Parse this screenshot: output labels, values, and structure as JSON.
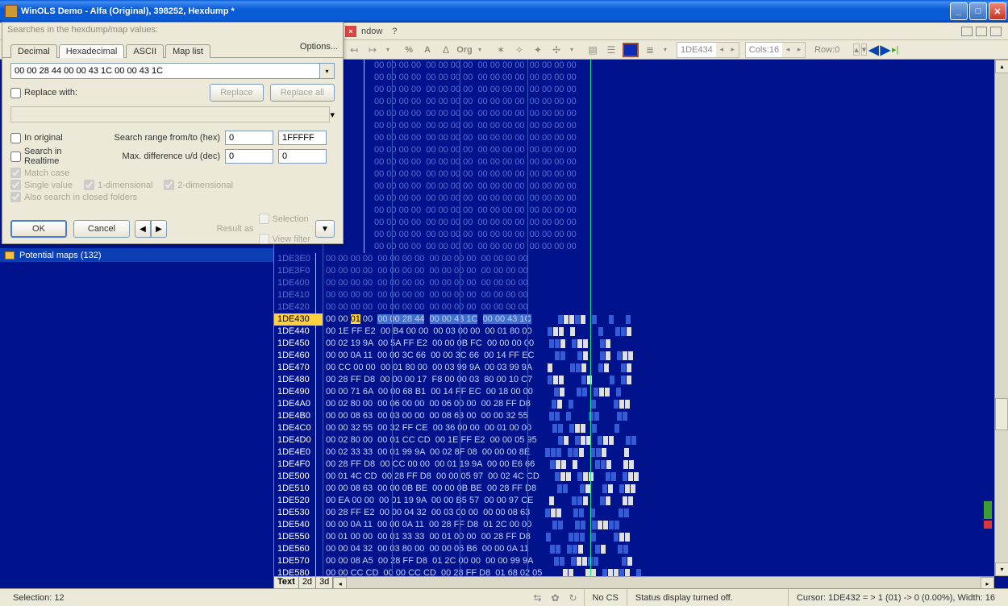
{
  "window": {
    "title": "WinOLS Demo - Alfa (Original), 398252, Hexdump *"
  },
  "menubar": {
    "item1": "ndow",
    "item2": "?"
  },
  "toolbar": {
    "addr": "1DE434",
    "cols": "Cols:16",
    "row": "Row:0"
  },
  "leftpanel": {
    "potential": "Potential maps (132)"
  },
  "statusbar": {
    "selection": "Selection: 12",
    "nocs": "No CS",
    "status_off": "Status display turned off.",
    "cursor": "Cursor: 1DE432 = > 1 (01) -> 0 (0.00%), Width: 16"
  },
  "search": {
    "header": "Searches in the hexdump/map values:",
    "tab_decimal": "Decimal",
    "tab_hex": "Hexadecimal",
    "tab_ascii": "ASCII",
    "tab_maplist": "Map list",
    "options": "Options...",
    "value": "00 00 28 44 00 00 43 1C 00 00 43 1C",
    "replace_with": "Replace with:",
    "btn_replace": "Replace",
    "btn_replace_all": "Replace all",
    "in_original": "In original",
    "search_realtime": "Search in Realtime",
    "match_case": "Match case",
    "single_value": "Single value",
    "one_dim": "1-dimensional",
    "two_dim": "2-dimensional",
    "also_search": "Also search in closed folders",
    "range_lbl": "Search range from/to (hex)",
    "range_from": "0",
    "range_to": "1FFFFF",
    "maxdiff_lbl": "Max. difference u/d (dec)",
    "maxdiff_a": "0",
    "maxdiff_b": "0",
    "ok": "OK",
    "cancel": "Cancel",
    "result_as": "Result as",
    "res_selection": "Selection",
    "res_viewfilter": "View filter"
  },
  "hex": {
    "zero_addrs": [
      "1DE3E0",
      "1DE3F0",
      "1DE400",
      "1DE410",
      "1DE420"
    ],
    "zero_bytes": "00 00 00 00  00 00 00 00  00 00 00 00  00 00 00 00",
    "rows": [
      {
        "addr": "1DE430",
        "bytes": "00 00 ~01~ 00  ^00 00 28 44^  ^00 00 43 1C^  ^00 00 43 1C^",
        "vis": "0001221201001001"
      },
      {
        "addr": "1DE440",
        "bytes": "00 1E FF E2  00 B4 00 00  00 03 00 00  00 01 80 00",
        "vis": "0122020000100112"
      },
      {
        "addr": "1DE450",
        "bytes": "00 02 19 9A  00 5A FF E2  00 00 0B FC  00 00 00 00",
        "vis": "0112012200120000"
      },
      {
        "addr": "1DE460",
        "bytes": "00 00 0A 11  00 00 3C 66  00 00 3C 66  00 14 FF EC",
        "vis": "0011001200120122"
      },
      {
        "addr": "1DE470",
        "bytes": "00 CC 00 00  00 01 80 00  00 03 99 9A  00 03 99 9A",
        "vis": "0200011200120012"
      },
      {
        "addr": "1DE480",
        "bytes": "00 28 FF D8  00 00 00 17  F8 00 00 03  80 00 10 C7",
        "vis": "0122000120001012"
      },
      {
        "addr": "1DE490",
        "bytes": "00 00 71 6A  00 00 68 B1  00 14 FF EC  00 18 00 00",
        "vis": "0012001101220100"
      },
      {
        "addr": "1DE4A0",
        "bytes": "00 02 80 00  00 06 00 00  00 06 00 00  00 28 FF D8",
        "vis": "0012010001000122"
      },
      {
        "addr": "1DE4B0",
        "bytes": "00 00 08 63  00 03 00 00  00 08 63 00  00 00 32 55",
        "vis": "0011010001100011"
      },
      {
        "addr": "1DE4C0",
        "bytes": "00 00 32 55  00 32 FF CE  00 36 00 00  00 01 00 00",
        "vis": "0011012201000100"
      },
      {
        "addr": "1DE4D0",
        "bytes": "00 02 80 00  00 01 CC CD  00 1E FF E2  00 00 05 95",
        "vis": "0012012201220011"
      },
      {
        "addr": "1DE4E0",
        "bytes": "00 02 33 33  00 01 99 9A  00 02 8F 08  00 00 00 8E",
        "vis": "0111011201120002"
      },
      {
        "addr": "1DE4F0",
        "bytes": "00 28 FF D8  00 CC 00 00  00 01 19 9A  00 00 E6 66",
        "vis": "0122020001120022"
      },
      {
        "addr": "1DE500",
        "bytes": "00 01 4C CD  00 28 FF D8  00 00 05 97  00 02 4C CD",
        "vis": "0122012200110122"
      },
      {
        "addr": "1DE510",
        "bytes": "00 00 08 63  00 00 0B BE  00 00 0B BE  00 28 FF D8",
        "vis": "0011001200120122"
      },
      {
        "addr": "1DE520",
        "bytes": "00 EA 00 00  00 01 19 9A  00 00 B5 57  00 00 97 CE",
        "vis": "0200011200120022"
      },
      {
        "addr": "1DE530",
        "bytes": "00 28 FF E2  00 00 04 32  00 03 00 00  00 00 08 63",
        "vis": "0122001101000011"
      },
      {
        "addr": "1DE540",
        "bytes": "00 00 0A 11  00 00 0A 11  00 28 FF D8  01 2C 00 00",
        "vis": "0011001101221100"
      },
      {
        "addr": "1DE550",
        "bytes": "00 01 00 00  00 01 33 33  00 01 00 00  00 28 FF D8",
        "vis": "0100011101000122"
      },
      {
        "addr": "1DE560",
        "bytes": "00 00 04 32  00 03 80 00  00 00 06 B6  00 00 0A 11",
        "vis": "0011011200120011"
      },
      {
        "addr": "1DE570",
        "bytes": "00 00 08 A5  00 28 FF D8  01 2C 00 00  00 00 99 9A",
        "vis": "0011012211000012"
      },
      {
        "addr": "1DE580",
        "bytes": "00 00 CC CD  00 00 CC CD  00 28 FF D8  01 68 02 05",
        "vis": "0022002201221201"
      }
    ],
    "tabs": {
      "text": "Text",
      "d2": "2d",
      "d3": "3d"
    }
  }
}
